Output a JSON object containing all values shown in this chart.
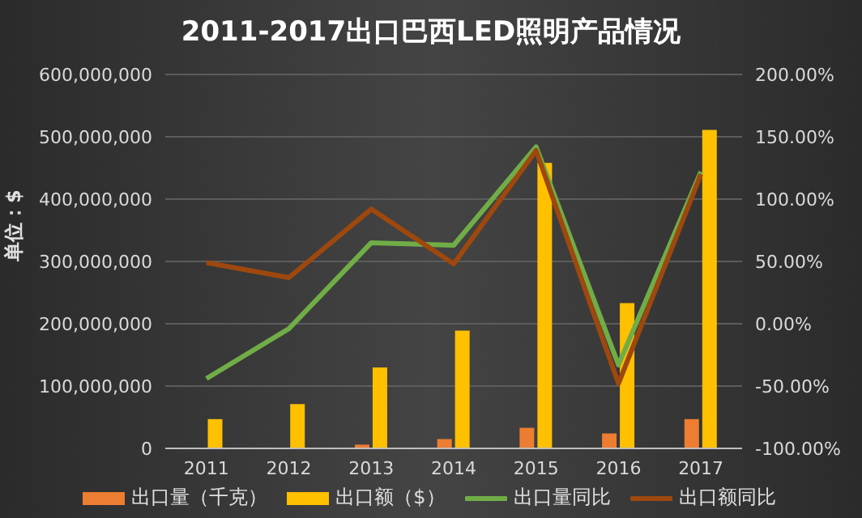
{
  "chart_data": {
    "type": "bar",
    "title": "2011-2017出口巴西LED照明产品情况",
    "ylabel": "单位：$",
    "categories": [
      "2011",
      "2012",
      "2013",
      "2014",
      "2015",
      "2016",
      "2017"
    ],
    "series": [
      {
        "name": "出口量（千克）",
        "color": "#ed7d31",
        "values": [
          1000000,
          1000000,
          6000000,
          15000000,
          33000000,
          24000000,
          47000000
        ]
      },
      {
        "name": "出口额（$）",
        "color": "#ffc000",
        "values": [
          47000000,
          71000000,
          130000000,
          189000000,
          458000000,
          233000000,
          511000000
        ]
      },
      {
        "name": "出口量同比",
        "type": "line",
        "axis": "y2",
        "color": "#70ad47",
        "values": [
          -44,
          -4,
          65,
          63,
          142,
          -33,
          122
        ]
      },
      {
        "name": "出口额同比",
        "type": "line",
        "axis": "y2",
        "color": "#9e480e",
        "values": [
          49,
          37,
          92,
          48,
          139,
          -48,
          120
        ]
      }
    ],
    "ylim": [
      0,
      600000000
    ],
    "yticks": [
      {
        "value": 0,
        "label": "0"
      },
      {
        "value": 100000000,
        "label": "100,000,000"
      },
      {
        "value": 200000000,
        "label": "200,000,000"
      },
      {
        "value": 300000000,
        "label": "300,000,000"
      },
      {
        "value": 400000000,
        "label": "400,000,000"
      },
      {
        "value": 500000000,
        "label": "500,000,000"
      },
      {
        "value": 600000000,
        "label": "600,000,000"
      }
    ],
    "y2lim": [
      -100,
      200
    ],
    "y2ticks": [
      {
        "value": -100,
        "label": "-100.00%"
      },
      {
        "value": -50,
        "label": "-50.00%"
      },
      {
        "value": 0,
        "label": "0.00%"
      },
      {
        "value": 50,
        "label": "50.00%"
      },
      {
        "value": 100,
        "label": "100.00%"
      },
      {
        "value": 150,
        "label": "150.00%"
      },
      {
        "value": 200,
        "label": "200.00%"
      }
    ],
    "grid": "y",
    "legend": "bottom",
    "marker": "none"
  }
}
